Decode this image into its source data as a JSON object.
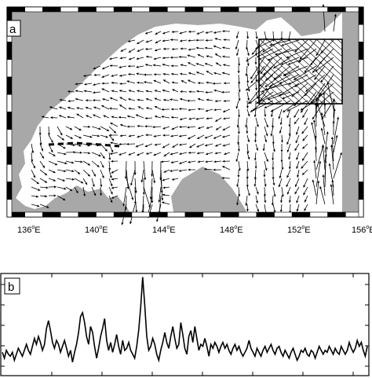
{
  "figure": {
    "panel_a": {
      "label": "a",
      "lon_ticks": [
        "136",
        "140",
        "144",
        "148",
        "152",
        "156"
      ],
      "degree_symbol": "o",
      "hemisphere": "E",
      "colors": {
        "land": "#a8a8a8",
        "sea": "#ffffff",
        "arrow": "#000000",
        "frame": "#000000"
      }
    },
    "panel_b": {
      "label": "b",
      "colors": {
        "line": "#000000",
        "frame": "#000000"
      }
    }
  },
  "chart_data": {
    "type": "line",
    "xlabel": "",
    "ylabel": "",
    "xlim": [
      0,
      180
    ],
    "ylim": [
      0,
      10
    ],
    "grid": false,
    "series": [
      {
        "values": [
          2.2,
          1.6,
          2.4,
          2.0,
          1.8,
          2.2,
          1.4,
          2.0,
          2.6,
          2.2,
          1.8,
          2.4,
          3.0,
          2.4,
          2.0,
          2.8,
          3.6,
          3.0,
          3.8,
          3.2,
          2.4,
          3.0,
          4.6,
          5.4,
          4.4,
          3.2,
          2.6,
          3.4,
          3.0,
          2.2,
          2.8,
          3.4,
          2.6,
          1.8,
          2.4,
          1.2,
          2.2,
          3.0,
          4.2,
          5.8,
          6.2,
          5.2,
          3.8,
          3.0,
          4.8,
          4.2,
          2.8,
          1.6,
          2.6,
          3.8,
          4.6,
          5.6,
          3.4,
          2.4,
          3.2,
          2.2,
          3.0,
          4.0,
          2.8,
          2.0,
          3.4,
          2.4,
          2.6,
          3.2,
          2.4,
          2.0,
          1.6,
          2.8,
          4.4,
          6.8,
          9.8,
          7.0,
          3.8,
          2.4,
          2.8,
          3.6,
          3.0,
          2.0,
          1.4,
          2.4,
          3.2,
          4.2,
          3.2,
          2.6,
          3.8,
          4.8,
          3.6,
          2.6,
          3.0,
          5.2,
          4.0,
          2.6,
          2.0,
          3.8,
          4.4,
          3.2,
          4.8,
          3.6,
          2.4,
          3.0,
          2.8,
          3.6,
          2.8,
          1.8,
          3.0,
          2.6,
          3.2,
          2.8,
          2.2,
          2.8,
          3.2,
          2.6,
          3.0,
          2.4,
          2.0,
          2.6,
          3.0,
          2.4,
          2.8,
          2.2,
          1.8,
          2.2,
          2.6,
          3.4,
          2.6,
          2.2,
          1.8,
          2.6,
          2.2,
          1.8,
          2.4,
          2.8,
          2.2,
          2.6,
          3.0,
          2.4,
          2.0,
          2.6,
          2.8,
          2.2,
          1.8,
          2.4,
          2.0,
          1.6,
          2.2,
          2.6,
          2.0,
          1.4,
          1.8,
          2.4,
          2.2,
          2.6,
          2.0,
          1.8,
          2.4,
          2.2,
          1.6,
          2.2,
          2.8,
          2.4,
          2.0,
          2.4,
          2.2,
          2.8,
          2.4,
          2.0,
          2.6,
          2.2,
          2.0,
          2.8,
          2.4,
          2.0,
          2.4,
          3.2,
          2.6,
          2.2,
          2.6,
          3.4,
          2.8,
          3.2,
          2.4,
          1.8,
          2.8
        ]
      }
    ]
  }
}
